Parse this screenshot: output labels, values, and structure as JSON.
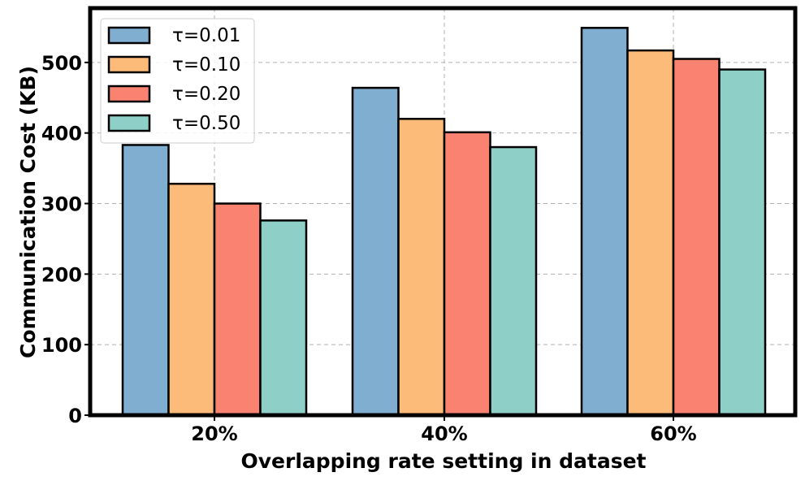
{
  "chart_data": {
    "type": "bar",
    "categories": [
      "20%",
      "40%",
      "60%"
    ],
    "series": [
      {
        "name": "τ=0.01",
        "values": [
          383,
          464,
          549
        ],
        "color": "#80aed0"
      },
      {
        "name": "τ=0.10",
        "values": [
          328,
          420,
          517
        ],
        "color": "#fdbb79"
      },
      {
        "name": "τ=0.20",
        "values": [
          300,
          401,
          505
        ],
        "color": "#f98270"
      },
      {
        "name": "τ=0.50",
        "values": [
          276,
          380,
          490
        ],
        "color": "#8ecfc8"
      }
    ],
    "title": "",
    "xlabel": "Overlapping rate setting in dataset",
    "ylabel": "Communication Cost (KB)",
    "ylim": [
      0,
      577
    ],
    "yticks": [
      0,
      100,
      200,
      300,
      400,
      500
    ],
    "grid": true,
    "legend_position": "top-left"
  }
}
